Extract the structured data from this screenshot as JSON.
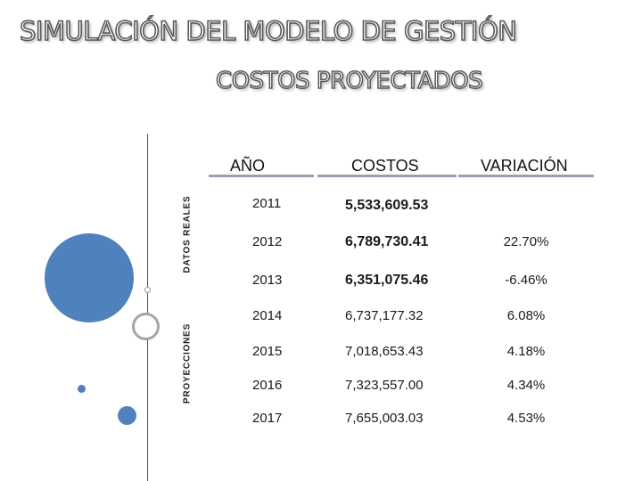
{
  "title": "SIMULACIÓN DEL MODELO DE GESTIÓN",
  "subtitle": "COSTOS PROYECTADOS",
  "table": {
    "headers": {
      "year": "AÑO",
      "cost": "COSTOS",
      "variation": "VARIACIÓN"
    },
    "groups": {
      "real": "DATOS REALES",
      "projected": "PROYECCIONES"
    },
    "rows": [
      {
        "year": "2011",
        "cost": "5,533,609.53",
        "variation": ""
      },
      {
        "year": "2012",
        "cost": "6,789,730.41",
        "variation": "22.70%"
      },
      {
        "year": "2013",
        "cost": "6,351,075.46",
        "variation": "-6.46%"
      },
      {
        "year": "2014",
        "cost": "6,737,177.32",
        "variation": "6.08%"
      },
      {
        "year": "2015",
        "cost": "7,018,653.43",
        "variation": "4.18%"
      },
      {
        "year": "2016",
        "cost": "7,323,557.00",
        "variation": "4.34%"
      },
      {
        "year": "2017",
        "cost": "7,655,003.03",
        "variation": "4.53%"
      }
    ]
  },
  "colors": {
    "accent": "#4f81bd",
    "grey": "#a5a5a5",
    "rule": "#9aa0b4"
  }
}
